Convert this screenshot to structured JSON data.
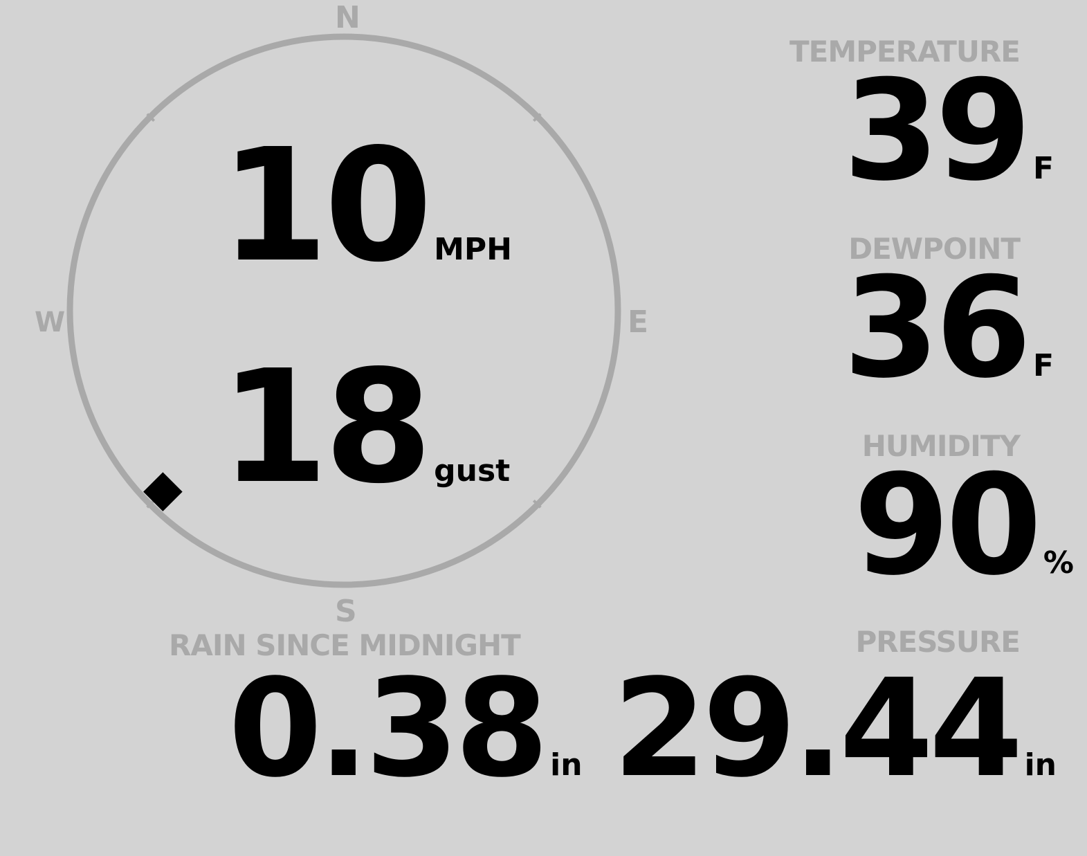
{
  "wind": {
    "speed": "10",
    "speed_unit": "MPH",
    "gust": "18",
    "gust_unit": "gust",
    "direction_degrees": 225,
    "compass": {
      "n": "N",
      "e": "E",
      "s": "S",
      "w": "W"
    }
  },
  "temperature": {
    "label": "TEMPERATURE",
    "value": "39",
    "unit": "F"
  },
  "dewpoint": {
    "label": "DEWPOINT",
    "value": "36",
    "unit": "F"
  },
  "humidity": {
    "label": "HUMIDITY",
    "value": "90",
    "unit": "%"
  },
  "rain": {
    "label": "RAIN SINCE MIDNIGHT",
    "value": "0.38",
    "unit": "in"
  },
  "pressure": {
    "label": "PRESSURE",
    "value": "29.44",
    "unit": "in"
  },
  "colors": {
    "background": "#d3d3d3",
    "label": "#a9a9a9",
    "value": "#000000",
    "compass_ring": "#a9a9a9"
  }
}
